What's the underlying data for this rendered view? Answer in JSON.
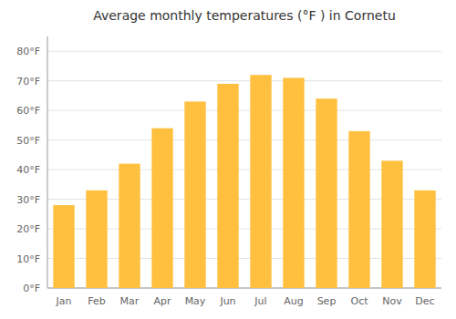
{
  "chart_data": {
    "type": "bar",
    "title": "Average monthly temperatures (°F ) in Cornetu",
    "categories": [
      "Jan",
      "Feb",
      "Mar",
      "Apr",
      "May",
      "Jun",
      "Jul",
      "Aug",
      "Sep",
      "Oct",
      "Nov",
      "Dec"
    ],
    "values": [
      28,
      33,
      42,
      54,
      63,
      69,
      72,
      71,
      64,
      53,
      43,
      33
    ],
    "color": "#FFC040",
    "ylim": [
      0,
      85
    ],
    "yticks": [
      {
        "value": 0,
        "label": "0°F"
      },
      {
        "value": 10,
        "label": "10°F"
      },
      {
        "value": 20,
        "label": "20°F"
      },
      {
        "value": 30,
        "label": "30°F"
      },
      {
        "value": 40,
        "label": "40°F"
      },
      {
        "value": 50,
        "label": "50°F"
      },
      {
        "value": 60,
        "label": "60°F"
      },
      {
        "value": 70,
        "label": "70°F"
      },
      {
        "value": 80,
        "label": "80°F"
      }
    ],
    "grid": true
  }
}
